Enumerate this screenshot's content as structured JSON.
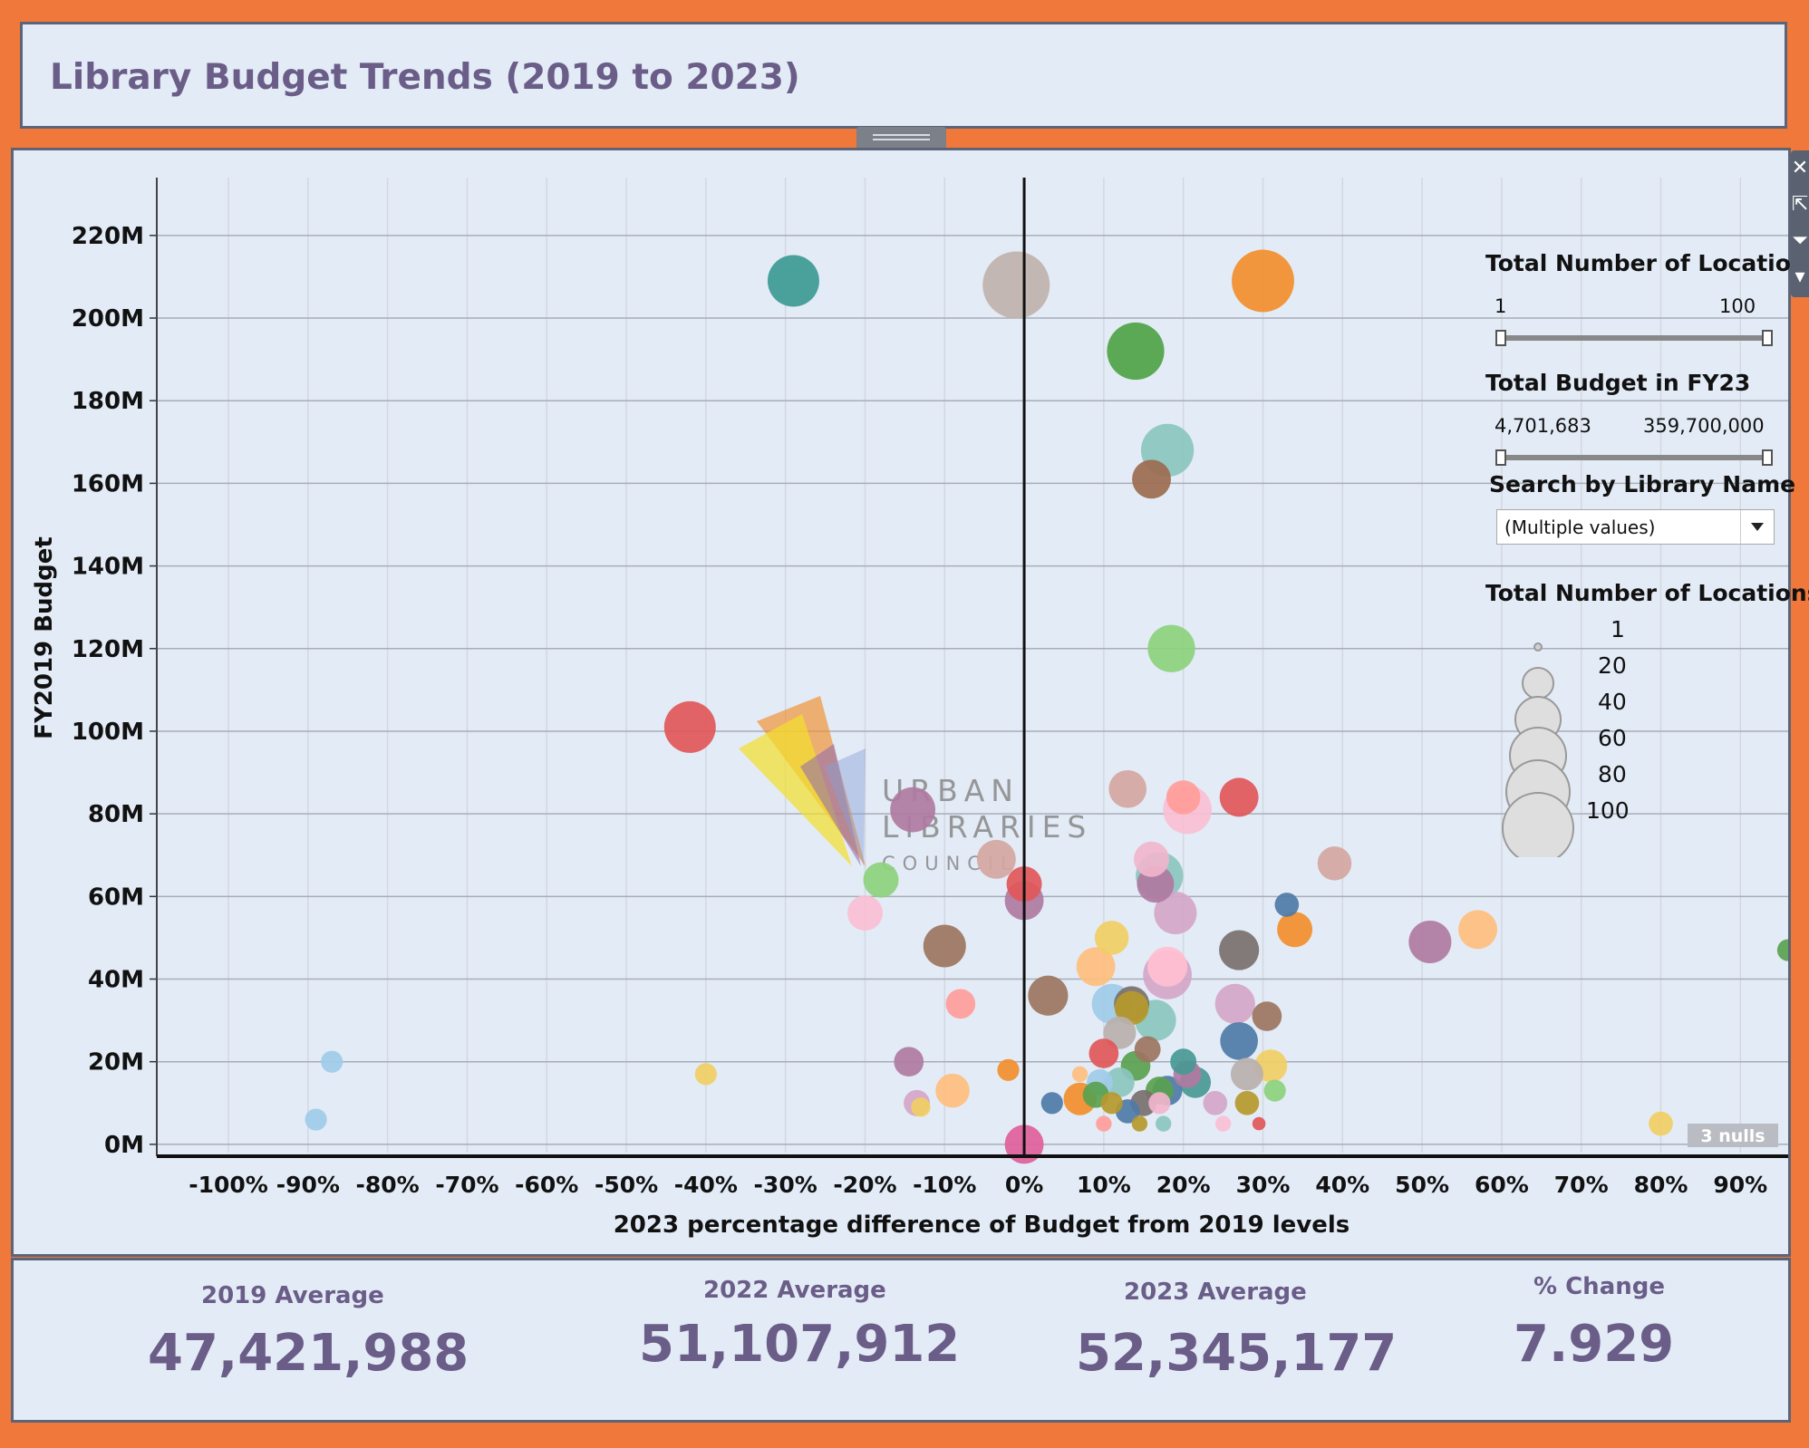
{
  "title": "Library Budget Trends (2019 to 2023)",
  "filters": {
    "locations_slider": {
      "label": "Total Number of Locatio..",
      "min": "1",
      "max": "100"
    },
    "budget_slider": {
      "label": "Total Budget in FY23",
      "min": "4,701,683",
      "max": "359,700,000"
    },
    "search": {
      "label": "Search by Library Name",
      "value": "(Multiple values)"
    }
  },
  "size_legend": {
    "title": "Total Number of Locations",
    "entries": [
      "1",
      "20",
      "40",
      "60",
      "80",
      "100"
    ]
  },
  "logo_text": [
    "URBAN",
    "LIBRARIES",
    "COUNCIL"
  ],
  "nulls_badge": "3 nulls",
  "kpis": [
    {
      "label": "2019 Average",
      "value": "47,421,988"
    },
    {
      "label": "2022 Average",
      "value": "51,107,912"
    },
    {
      "label": "2023 Average",
      "value": "52,345,177"
    },
    {
      "label": "% Change",
      "value": "7.929"
    }
  ],
  "chart_data": {
    "type": "scatter",
    "xlabel": "2023 percentage difference of Budget from 2019 levels",
    "ylabel": "FY2019 Budget",
    "xlim": [
      -109,
      96
    ],
    "ylim": [
      -2,
      234
    ],
    "x_ticks": [
      -100,
      -90,
      -80,
      -70,
      -60,
      -50,
      -40,
      -30,
      -20,
      -10,
      0,
      10,
      20,
      30,
      40,
      50,
      60,
      70,
      80,
      90
    ],
    "x_tick_labels": [
      "-100%",
      "-90%",
      "-80%",
      "-70%",
      "-60%",
      "-50%",
      "-40%",
      "-30%",
      "-20%",
      "-10%",
      "0%",
      "10%",
      "20%",
      "30%",
      "40%",
      "50%",
      "60%",
      "70%",
      "80%",
      "90%"
    ],
    "y_ticks": [
      0,
      20,
      40,
      60,
      80,
      100,
      120,
      140,
      160,
      180,
      200,
      220
    ],
    "y_tick_labels": [
      "0M",
      "20M",
      "40M",
      "60M",
      "80M",
      "100M",
      "120M",
      "140M",
      "160M",
      "180M",
      "200M",
      "220M"
    ],
    "grid": true,
    "reference_line_x": 0,
    "size_encoding": "Total Number of Locations",
    "points": [
      {
        "x": -29,
        "y": 209,
        "size": 55,
        "color": "#3d9a94"
      },
      {
        "x": -1,
        "y": 208,
        "size": 100,
        "color": "#bfb2ab"
      },
      {
        "x": 30,
        "y": 209,
        "size": 85,
        "color": "#f28e2b"
      },
      {
        "x": 14,
        "y": 192,
        "size": 70,
        "color": "#4fa345"
      },
      {
        "x": 18,
        "y": 168,
        "size": 58,
        "color": "#8bc6be"
      },
      {
        "x": 16,
        "y": 161,
        "size": 28,
        "color": "#9c6b4f"
      },
      {
        "x": 18.5,
        "y": 120,
        "size": 45,
        "color": "#8cd17d"
      },
      {
        "x": -42,
        "y": 101,
        "size": 55,
        "color": "#e15759"
      },
      {
        "x": -14,
        "y": 81,
        "size": 40,
        "color": "#b07aa1"
      },
      {
        "x": 13,
        "y": 86,
        "size": 26,
        "color": "#d4a6a0"
      },
      {
        "x": 20,
        "y": 84,
        "size": 20,
        "color": "#ff9d9a"
      },
      {
        "x": 27,
        "y": 84,
        "size": 28,
        "color": "#e15759"
      },
      {
        "x": 20.5,
        "y": 81,
        "size": 48,
        "color": "#fabfd2"
      },
      {
        "x": -3.5,
        "y": 69,
        "size": 28,
        "color": "#d4a6a0"
      },
      {
        "x": 16,
        "y": 69,
        "size": 22,
        "color": "#f1b5cc"
      },
      {
        "x": 39,
        "y": 68,
        "size": 20,
        "color": "#d4a6a0"
      },
      {
        "x": -18,
        "y": 64,
        "size": 22,
        "color": "#8cd17d"
      },
      {
        "x": 0,
        "y": 63,
        "size": 22,
        "color": "#e15759"
      },
      {
        "x": 16.5,
        "y": 63,
        "size": 25,
        "color": "#b07aa1"
      },
      {
        "x": 17,
        "y": 65,
        "size": 45,
        "color": "#8bc6be"
      },
      {
        "x": -20,
        "y": 56,
        "size": 22,
        "color": "#fabfd2"
      },
      {
        "x": 0,
        "y": 59,
        "size": 28,
        "color": "#b07aa1"
      },
      {
        "x": 19,
        "y": 56,
        "size": 35,
        "color": "#d4a6c8"
      },
      {
        "x": 33,
        "y": 58,
        "size": 8,
        "color": "#4e79a7"
      },
      {
        "x": 34,
        "y": 52,
        "size": 22,
        "color": "#f28e2b"
      },
      {
        "x": 57,
        "y": 52,
        "size": 28,
        "color": "#ffbe7d"
      },
      {
        "x": 51,
        "y": 49,
        "size": 35,
        "color": "#b07aa1"
      },
      {
        "x": 11,
        "y": 50,
        "size": 20,
        "color": "#f1ce63"
      },
      {
        "x": -10,
        "y": 48,
        "size": 35,
        "color": "#9c755f"
      },
      {
        "x": 27,
        "y": 47,
        "size": 30,
        "color": "#79706e"
      },
      {
        "x": 9,
        "y": 43,
        "size": 28,
        "color": "#ffbe7d"
      },
      {
        "x": 18,
        "y": 43,
        "size": 30,
        "color": "#ffbfd0"
      },
      {
        "x": 18,
        "y": 41,
        "size": 48,
        "color": "#d4a6c8"
      },
      {
        "x": 3,
        "y": 36,
        "size": 30,
        "color": "#9c755f"
      },
      {
        "x": -8,
        "y": 34,
        "size": 14,
        "color": "#ff9d9a"
      },
      {
        "x": 11,
        "y": 34,
        "size": 30,
        "color": "#a0cbe8"
      },
      {
        "x": 13.5,
        "y": 33,
        "size": 20,
        "color": "#b6992d"
      },
      {
        "x": 13.5,
        "y": 34,
        "size": 22,
        "color": "#79706e"
      },
      {
        "x": 26.5,
        "y": 34,
        "size": 30,
        "color": "#d4a6c8"
      },
      {
        "x": 30.5,
        "y": 31,
        "size": 14,
        "color": "#9c755f"
      },
      {
        "x": 16.5,
        "y": 30,
        "size": 32,
        "color": "#8bc6be"
      },
      {
        "x": 12,
        "y": 27,
        "size": 18,
        "color": "#bab0ac"
      },
      {
        "x": 27,
        "y": 25,
        "size": 26,
        "color": "#4e79a7"
      },
      {
        "x": 15.5,
        "y": 23,
        "size": 10,
        "color": "#9c755f"
      },
      {
        "x": 10,
        "y": 22,
        "size": 14,
        "color": "#e15759"
      },
      {
        "x": -14.5,
        "y": 20,
        "size": 14,
        "color": "#b07aa1"
      },
      {
        "x": 20,
        "y": 20,
        "size": 10,
        "color": "#499894"
      },
      {
        "x": 14,
        "y": 19,
        "size": 14,
        "color": "#59a14f"
      },
      {
        "x": 31,
        "y": 19,
        "size": 18,
        "color": "#f1ce63"
      },
      {
        "x": 28,
        "y": 17,
        "size": 18,
        "color": "#bab0ac"
      },
      {
        "x": -2,
        "y": 18,
        "size": 6,
        "color": "#f28e2b"
      },
      {
        "x": 21.5,
        "y": 15,
        "size": 16,
        "color": "#499894"
      },
      {
        "x": 12,
        "y": 15,
        "size": 14,
        "color": "#8bc6be"
      },
      {
        "x": 9.5,
        "y": 15,
        "size": 10,
        "color": "#a0cbe8"
      },
      {
        "x": 20.5,
        "y": 17,
        "size": 12,
        "color": "#b07aa1"
      },
      {
        "x": 17,
        "y": 13,
        "size": 12,
        "color": "#59a14f"
      },
      {
        "x": 18,
        "y": 13,
        "size": 14,
        "color": "#4e79a7"
      },
      {
        "x": 31.5,
        "y": 13,
        "size": 6,
        "color": "#8cd17d"
      },
      {
        "x": -9,
        "y": 13,
        "size": 20,
        "color": "#ffbe7d"
      },
      {
        "x": 7,
        "y": 11,
        "size": 18,
        "color": "#f28e2b"
      },
      {
        "x": 9,
        "y": 12,
        "size": 10,
        "color": "#59a14f"
      },
      {
        "x": 3.5,
        "y": 10,
        "size": 6,
        "color": "#4e79a7"
      },
      {
        "x": 11,
        "y": 10,
        "size": 6,
        "color": "#b6992d"
      },
      {
        "x": 15,
        "y": 10,
        "size": 10,
        "color": "#79706e"
      },
      {
        "x": 17,
        "y": 10,
        "size": 6,
        "color": "#f1b5cc"
      },
      {
        "x": 24,
        "y": 10,
        "size": 8,
        "color": "#d4a6c8"
      },
      {
        "x": 28,
        "y": 10,
        "size": 8,
        "color": "#b6992d"
      },
      {
        "x": -13.5,
        "y": 10,
        "size": 10,
        "color": "#d4a6c8"
      },
      {
        "x": -13,
        "y": 9,
        "size": 4,
        "color": "#f1ce63"
      },
      {
        "x": 13,
        "y": 8,
        "size": 8,
        "color": "#4e79a7"
      },
      {
        "x": 10,
        "y": 5,
        "size": 2,
        "color": "#ff9d9a"
      },
      {
        "x": 14.5,
        "y": 5,
        "size": 2,
        "color": "#b6992d"
      },
      {
        "x": 17.5,
        "y": 5,
        "size": 2,
        "color": "#8bc6be"
      },
      {
        "x": 25,
        "y": 5,
        "size": 2,
        "color": "#fabfd2"
      },
      {
        "x": 29.5,
        "y": 5,
        "size": 1,
        "color": "#e15759"
      },
      {
        "x": 7,
        "y": 17,
        "size": 2,
        "color": "#ffbe7d"
      },
      {
        "x": -40,
        "y": 17,
        "size": 6,
        "color": "#f1ce63"
      },
      {
        "x": -87,
        "y": 20,
        "size": 6,
        "color": "#a0cbe8"
      },
      {
        "x": -89,
        "y": 6,
        "size": 6,
        "color": "#a0cbe8"
      },
      {
        "x": 80,
        "y": 5,
        "size": 8,
        "color": "#f1ce63"
      },
      {
        "x": 0,
        "y": 0,
        "size": 28,
        "color": "#e0609a"
      },
      {
        "x": 96,
        "y": 47,
        "size": 6,
        "color": "#59a14f"
      }
    ]
  }
}
